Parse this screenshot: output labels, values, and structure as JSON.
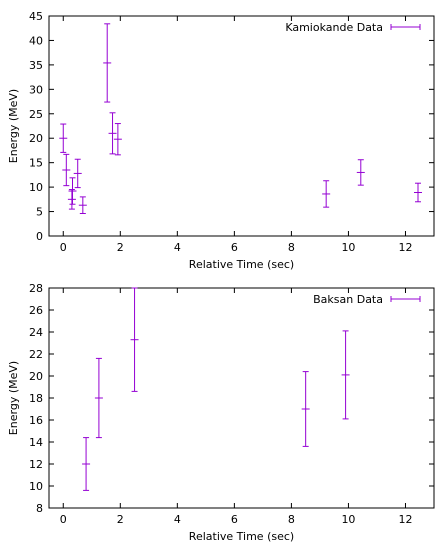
{
  "chart_data": [
    {
      "type": "scatter",
      "error_bars": true,
      "title": "",
      "xlabel": "Relative Time (sec)",
      "ylabel": "Energy (MeV)",
      "xlim": [
        -0.5,
        13
      ],
      "ylim": [
        0,
        45
      ],
      "xticks": [
        0,
        2,
        4,
        6,
        8,
        10,
        12
      ],
      "yticks": [
        0,
        5,
        10,
        15,
        20,
        25,
        30,
        35,
        40,
        45
      ],
      "legend": "top-right",
      "grid": false,
      "series": [
        {
          "name": "Kamiokande Data",
          "color": "#9400d3",
          "points": [
            {
              "x": 0.0,
              "y": 20.0,
              "err": 2.9
            },
            {
              "x": 0.107,
              "y": 13.5,
              "err": 3.2
            },
            {
              "x": 0.303,
              "y": 7.5,
              "err": 2.0
            },
            {
              "x": 0.324,
              "y": 9.2,
              "err": 2.7
            },
            {
              "x": 0.507,
              "y": 12.8,
              "err": 2.9
            },
            {
              "x": 0.686,
              "y": 6.3,
              "err": 1.7
            },
            {
              "x": 1.541,
              "y": 35.4,
              "err": 8.0
            },
            {
              "x": 1.728,
              "y": 21.0,
              "err": 4.2
            },
            {
              "x": 1.915,
              "y": 19.8,
              "err": 3.2
            },
            {
              "x": 9.219,
              "y": 8.6,
              "err": 2.7
            },
            {
              "x": 10.433,
              "y": 13.0,
              "err": 2.6
            },
            {
              "x": 12.439,
              "y": 8.9,
              "err": 1.9
            }
          ]
        }
      ]
    },
    {
      "type": "scatter",
      "error_bars": true,
      "title": "",
      "xlabel": "Relative Time (sec)",
      "ylabel": "Energy (MeV)",
      "xlim": [
        -0.5,
        13
      ],
      "ylim": [
        8,
        28
      ],
      "xticks": [
        0,
        2,
        4,
        6,
        8,
        10,
        12
      ],
      "yticks": [
        8,
        10,
        12,
        14,
        16,
        18,
        20,
        22,
        24,
        26,
        28
      ],
      "legend": "top-right",
      "grid": false,
      "series": [
        {
          "name": "Baksan Data",
          "color": "#9400d3",
          "points": [
            {
              "x": 0.8,
              "y": 12.0,
              "err": 2.4
            },
            {
              "x": 1.25,
              "y": 18.0,
              "err": 3.6
            },
            {
              "x": 2.5,
              "y": 23.3,
              "err": 4.7
            },
            {
              "x": 8.5,
              "y": 17.0,
              "err": 3.4
            },
            {
              "x": 9.9,
              "y": 20.1,
              "err": 4.0
            }
          ]
        }
      ]
    }
  ]
}
